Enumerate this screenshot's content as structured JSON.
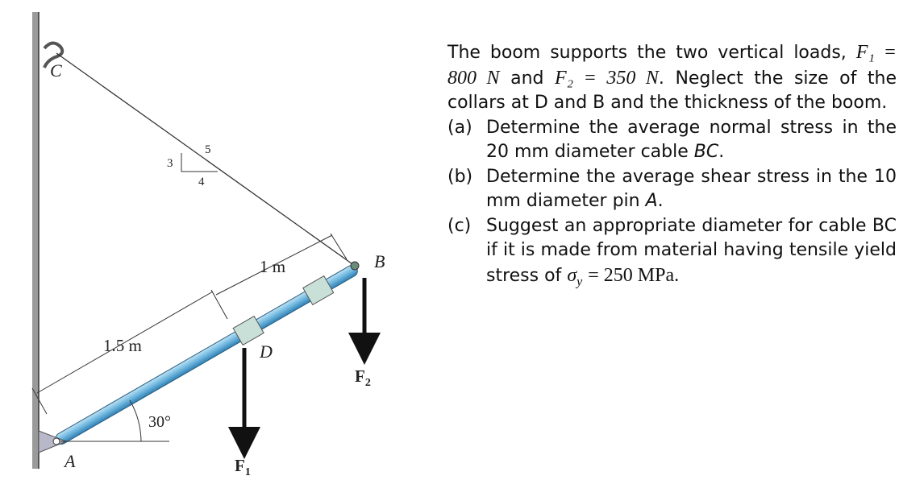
{
  "figure": {
    "labels": {
      "C": "C",
      "A": "A",
      "B": "B",
      "D": "D",
      "len_BD": "1 m",
      "len_AD": "1.5 m",
      "angle": "30°",
      "F1": "F",
      "F1_sub": "1",
      "F2": "F",
      "F2_sub": "2",
      "slope_rise": "3",
      "slope_run": "4",
      "slope_hyp": "5"
    }
  },
  "problem": {
    "intro": [
      "The boom supports the two vertical loads,",
      "F₁ = 800 N",
      "and",
      "F₂ = 350 N",
      ". Neglect the size of the collars at D and B and the thickness of the boom."
    ],
    "parts": [
      {
        "label": "(a)",
        "text": [
          "Determine the average normal stress in the 20 mm diameter cable",
          "BC",
          "."
        ]
      },
      {
        "label": "(b)",
        "text": [
          "Determine the average shear stress in the 10 mm diameter pin",
          "A",
          "."
        ]
      },
      {
        "label": "(c)",
        "text": [
          "Suggest an appropriate diameter for cable BC if it is made from material having tensile yield stress of",
          "σ",
          "y",
          "= 250 MPa."
        ]
      }
    ]
  }
}
